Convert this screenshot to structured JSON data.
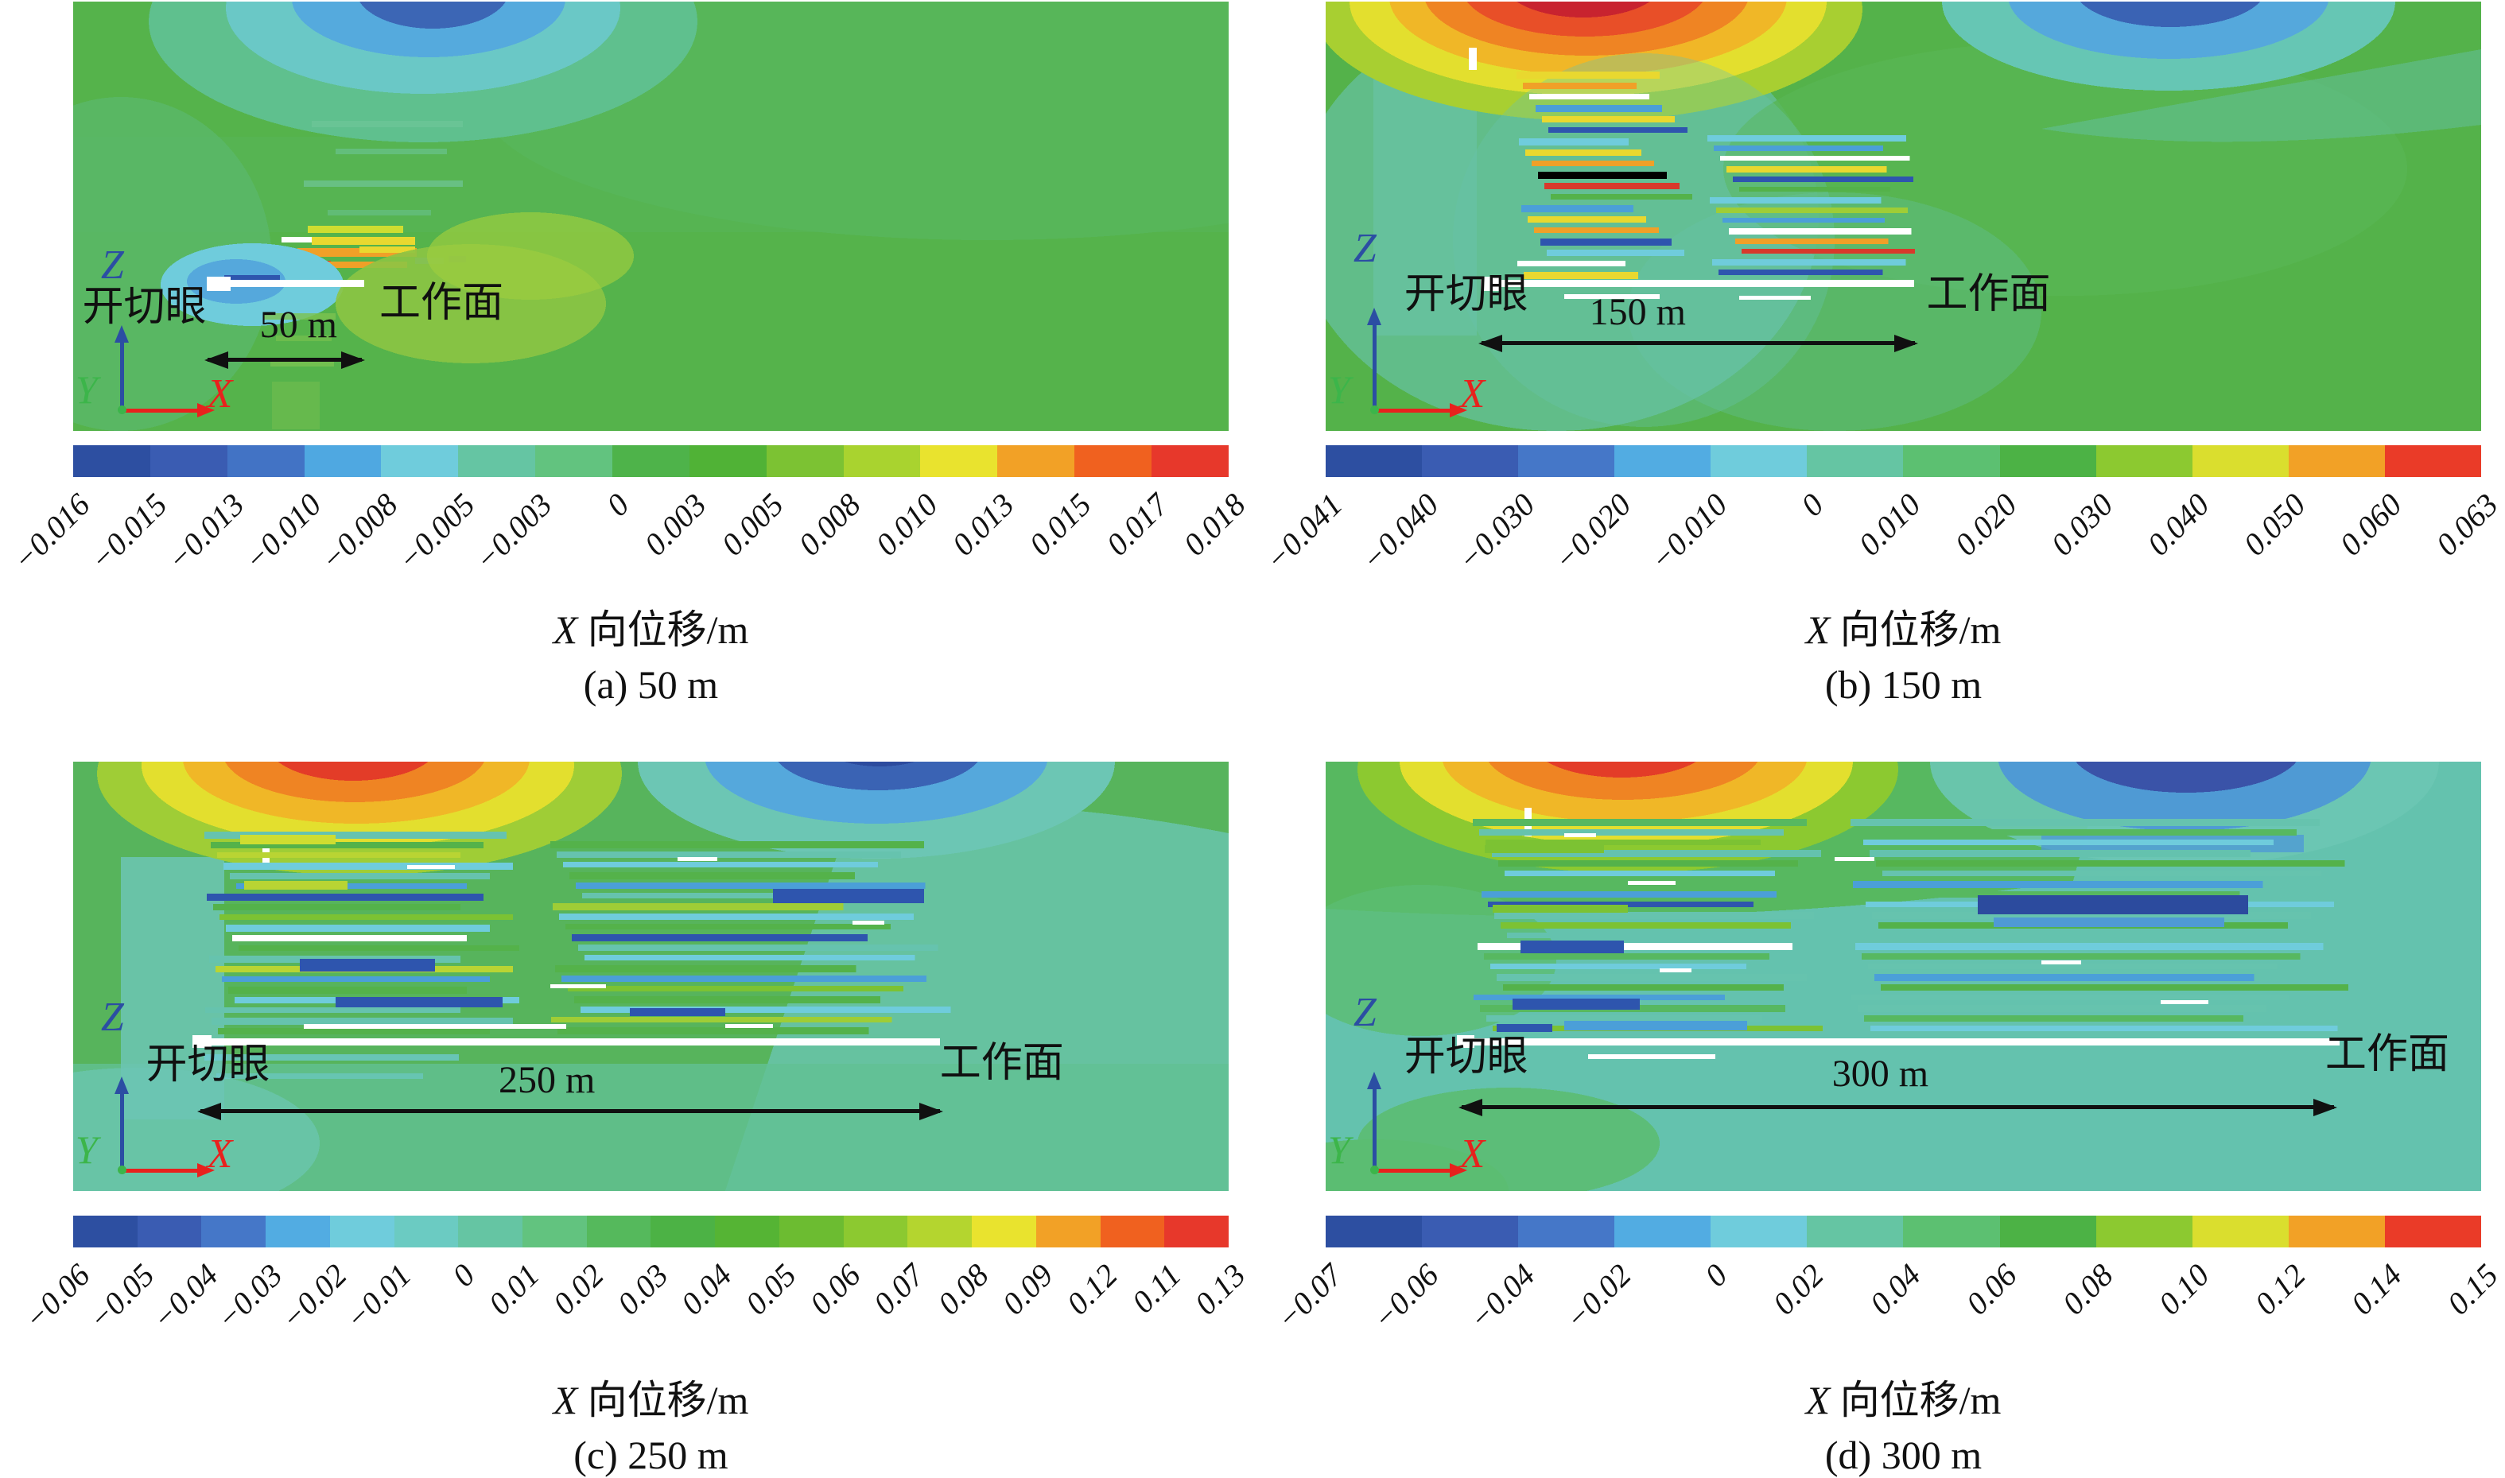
{
  "page": {
    "background": "#ffffff"
  },
  "colors": {
    "axis_z": "#2b4ea3",
    "axis_x": "#e8211d",
    "axis_y": "#3cb54a",
    "field_green": "#54b24a",
    "field_teal": "#64c2ae",
    "hot_max": "#e7382b",
    "cold_min": "#2d4fa1"
  },
  "figure": {
    "panels": [
      {
        "id": "a",
        "cut_label": "开切眼",
        "face_label": "工作面",
        "distance_label": "50 m",
        "axis_labels": {
          "z": "Z",
          "y": "Y",
          "x": "X"
        },
        "caption_var": "X",
        "caption_rest": " 向位移/m",
        "caption": "(a) 50 m",
        "colorbar": {
          "ticks": [
            "−0.016",
            "−0.015",
            "−0.013",
            "−0.010",
            "−0.008",
            "−0.005",
            "−0.003",
            "0",
            "0.003",
            "0.005",
            "0.008",
            "0.010",
            "0.013",
            "0.015",
            "0.017",
            "0.018"
          ],
          "colors": [
            "#2d4fa1",
            "#3a5cb2",
            "#4273c5",
            "#4fa8e1",
            "#6fccdc",
            "#65c5a3",
            "#62c37f",
            "#4eb34a",
            "#50b236",
            "#7cc233",
            "#a9d32f",
            "#e9e32e",
            "#f2a126",
            "#f0611f",
            "#e7382b"
          ]
        }
      },
      {
        "id": "b",
        "cut_label": "开切眼",
        "face_label": "工作面",
        "distance_label": "150 m",
        "axis_labels": {
          "z": "Z",
          "y": "Y",
          "x": "X"
        },
        "caption_var": "X",
        "caption_rest": " 向位移/m",
        "caption": "(b) 150 m",
        "colorbar": {
          "ticks": [
            "−0.041",
            "−0.040",
            "−0.030",
            "−0.020",
            "−0.010",
            "0",
            "0.010",
            "0.020",
            "0.030",
            "0.040",
            "0.050",
            "0.060",
            "0.063"
          ],
          "colors": [
            "#2d4fa1",
            "#3a5cb2",
            "#4577c8",
            "#52ace2",
            "#6fccdc",
            "#65c5a3",
            "#5cc071",
            "#4cb245",
            "#8cc930",
            "#dade2e",
            "#f2a126",
            "#ea3b28"
          ]
        }
      },
      {
        "id": "c",
        "cut_label": "开切眼",
        "face_label": "工作面",
        "distance_label": "250 m",
        "axis_labels": {
          "z": "Z",
          "y": "Y",
          "x": "X"
        },
        "caption_var": "X",
        "caption_rest": " 向位移/m",
        "caption": "(c) 250 m",
        "colorbar": {
          "ticks": [
            "−0.06",
            "−0.05",
            "−0.04",
            "−0.03",
            "−0.02",
            "−0.01",
            "0",
            "0.01",
            "0.02",
            "0.03",
            "0.04",
            "0.05",
            "0.06",
            "0.07",
            "0.08",
            "0.09",
            "0.12",
            "0.11",
            "0.13"
          ],
          "colors": [
            "#2d4fa1",
            "#3a5cb2",
            "#4577c8",
            "#52ace2",
            "#6fccdc",
            "#6bcbc2",
            "#65c5a3",
            "#62c37f",
            "#55b95c",
            "#4cb245",
            "#55b434",
            "#6cbc31",
            "#8cc930",
            "#b4d52f",
            "#e9e32e",
            "#f2a126",
            "#f0611f",
            "#e7382b"
          ]
        }
      },
      {
        "id": "d",
        "cut_label": "开切眼",
        "face_label": "工作面",
        "distance_label": "300 m",
        "axis_labels": {
          "z": "Z",
          "y": "Y",
          "x": "X"
        },
        "caption_var": "X",
        "caption_rest": " 向位移/m",
        "caption": "(d) 300 m",
        "colorbar": {
          "ticks": [
            "−0.07",
            "−0.06",
            "−0.04",
            "−0.02",
            "0",
            "0.02",
            "0.04",
            "0.06",
            "0.08",
            "0.10",
            "0.12",
            "0.14",
            "0.15"
          ],
          "colors": [
            "#2d4fa1",
            "#3a5cb2",
            "#4577c8",
            "#52ace2",
            "#6fccdc",
            "#65c5a3",
            "#5cc071",
            "#4cb245",
            "#8cc930",
            "#dade2e",
            "#f2a126",
            "#ea3b28"
          ]
        }
      }
    ]
  },
  "chart_data": [
    {
      "type": "heatmap",
      "subtype": "contour-colormap",
      "title": "X 向位移/m",
      "panel_label": "(a) 50 m",
      "advance_distance_m": 50,
      "variable": "X-direction displacement",
      "units": "m",
      "value_range": [
        -0.016,
        0.018
      ],
      "colorbar_ticks": [
        -0.016,
        -0.015,
        -0.013,
        -0.01,
        -0.008,
        -0.005,
        -0.003,
        0,
        0.003,
        0.005,
        0.008,
        0.01,
        0.013,
        0.015,
        0.017,
        0.018
      ],
      "annotations": [
        "开切眼",
        "50 m",
        "工作面",
        "Z",
        "Y",
        "X"
      ],
      "legend_position": "bottom",
      "grid": false
    },
    {
      "type": "heatmap",
      "subtype": "contour-colormap",
      "title": "X 向位移/m",
      "panel_label": "(b) 150 m",
      "advance_distance_m": 150,
      "variable": "X-direction displacement",
      "units": "m",
      "value_range": [
        -0.041,
        0.063
      ],
      "colorbar_ticks": [
        -0.041,
        -0.04,
        -0.03,
        -0.02,
        -0.01,
        0,
        0.01,
        0.02,
        0.03,
        0.04,
        0.05,
        0.06,
        0.063
      ],
      "annotations": [
        "开切眼",
        "150 m",
        "工作面",
        "Z",
        "Y",
        "X"
      ],
      "legend_position": "bottom",
      "grid": false
    },
    {
      "type": "heatmap",
      "subtype": "contour-colormap",
      "title": "X 向位移/m",
      "panel_label": "(c) 250 m",
      "advance_distance_m": 250,
      "variable": "X-direction displacement",
      "units": "m",
      "value_range": [
        -0.06,
        0.13
      ],
      "colorbar_ticks": [
        -0.06,
        -0.05,
        -0.04,
        -0.03,
        -0.02,
        -0.01,
        0,
        0.01,
        0.02,
        0.03,
        0.04,
        0.05,
        0.06,
        0.07,
        0.08,
        0.09,
        0.12,
        0.11,
        0.13
      ],
      "annotations": [
        "开切眼",
        "250 m",
        "工作面",
        "Z",
        "Y",
        "X"
      ],
      "legend_position": "bottom",
      "grid": false
    },
    {
      "type": "heatmap",
      "subtype": "contour-colormap",
      "title": "X 向位移/m",
      "panel_label": "(d) 300 m",
      "advance_distance_m": 300,
      "variable": "X-direction displacement",
      "units": "m",
      "value_range": [
        -0.07,
        0.15
      ],
      "colorbar_ticks": [
        -0.07,
        -0.06,
        -0.04,
        -0.02,
        0,
        0.02,
        0.04,
        0.06,
        0.08,
        0.1,
        0.12,
        0.14,
        0.15
      ],
      "annotations": [
        "开切眼",
        "300 m",
        "工作面",
        "Z",
        "Y",
        "X"
      ],
      "legend_position": "bottom",
      "grid": false
    }
  ]
}
